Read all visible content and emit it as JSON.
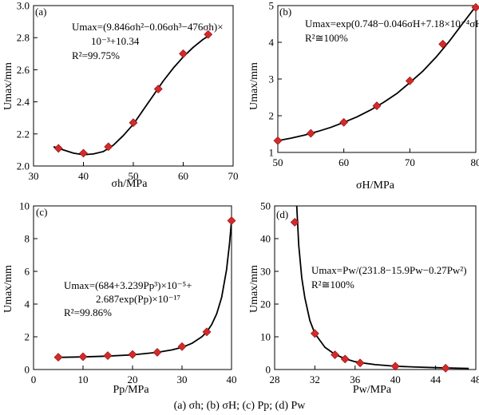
{
  "caption": "(a) σh; (b) σH; (c) Pp; (d) Pw",
  "chart_data": [
    {
      "panel": "(a)",
      "type": "scatter",
      "xlabel": "σh/MPa",
      "ylabel": "Umax/mm",
      "xlim": [
        30,
        70
      ],
      "ylim": [
        2.0,
        3.0
      ],
      "xticks": [
        30,
        40,
        50,
        60,
        70
      ],
      "yticks": [
        2.0,
        2.2,
        2.4,
        2.6,
        2.8,
        3.0
      ],
      "tick_labels_x": [
        "30",
        "40",
        "50",
        "60",
        "70"
      ],
      "tick_labels_y": [
        "2.0",
        "2.2",
        "2.4",
        "2.6",
        "2.8",
        "3.0"
      ],
      "x": [
        35,
        40,
        45,
        50,
        55,
        60,
        65
      ],
      "y": [
        2.11,
        2.08,
        2.12,
        2.27,
        2.48,
        2.7,
        2.82
      ],
      "fit_x": [
        34,
        36,
        38,
        40,
        42,
        44,
        46,
        48,
        50,
        52,
        54,
        56,
        58,
        60,
        62,
        64,
        65
      ],
      "fit_y": [
        2.12,
        2.1,
        2.08,
        2.07,
        2.075,
        2.09,
        2.13,
        2.19,
        2.26,
        2.35,
        2.44,
        2.53,
        2.61,
        2.68,
        2.74,
        2.79,
        2.81
      ],
      "equation": [
        "Umax=(9.846σh²−0.06σh³−476σh)×",
        "10⁻³+10.34",
        "R²=99.75%"
      ]
    },
    {
      "panel": "(b)",
      "type": "scatter",
      "xlabel": "σH/MPa",
      "ylabel": "Umax/mm",
      "xlim": [
        50,
        80
      ],
      "ylim": [
        1,
        5
      ],
      "xticks": [
        50,
        60,
        70,
        80
      ],
      "yticks": [
        1,
        2,
        3,
        4,
        5
      ],
      "tick_labels_x": [
        "50",
        "60",
        "70",
        "80"
      ],
      "tick_labels_y": [
        "1",
        "2",
        "3",
        "4",
        "5"
      ],
      "x": [
        50,
        55,
        60,
        65,
        70,
        75,
        80
      ],
      "y": [
        1.32,
        1.52,
        1.82,
        2.27,
        2.95,
        3.95,
        4.95
      ],
      "fit_x": [
        50,
        52,
        54,
        56,
        58,
        60,
        62,
        64,
        66,
        68,
        70,
        72,
        74,
        76,
        78,
        80
      ],
      "fit_y": [
        1.32,
        1.39,
        1.47,
        1.57,
        1.68,
        1.82,
        1.97,
        2.15,
        2.36,
        2.6,
        2.9,
        3.22,
        3.6,
        4.03,
        4.51,
        4.98
      ],
      "equation": [
        "Umax=exp(0.748−0.046σH+7.18×10⁻⁴σH²",
        "R²≅100%"
      ]
    },
    {
      "panel": "(c)",
      "type": "scatter",
      "xlabel": "Pp/MPa",
      "ylabel": "Umax/mm",
      "xlim": [
        0,
        40
      ],
      "ylim": [
        0,
        10
      ],
      "xticks": [
        0,
        10,
        20,
        30,
        40
      ],
      "yticks": [
        0,
        2,
        4,
        6,
        8,
        10
      ],
      "tick_labels_x": [
        "0",
        "10",
        "20",
        "30",
        "40"
      ],
      "tick_labels_y": [
        "0",
        "2",
        "4",
        "6",
        "8",
        "10"
      ],
      "x": [
        5,
        10,
        15,
        20,
        25,
        30,
        35,
        40
      ],
      "y": [
        0.75,
        0.78,
        0.85,
        0.92,
        1.05,
        1.4,
        2.3,
        9.1
      ],
      "fit_x": [
        5,
        10,
        15,
        20,
        25,
        28,
        30,
        32,
        34,
        35,
        36,
        37,
        38,
        39,
        39.6,
        40
      ],
      "fit_y": [
        0.74,
        0.77,
        0.82,
        0.9,
        1.05,
        1.2,
        1.35,
        1.6,
        2.0,
        2.3,
        2.75,
        3.4,
        4.4,
        6.1,
        7.7,
        9.1
      ],
      "equation": [
        "Umax=(684+3.239Pp³)×10⁻⁵+",
        "2.687exp(Pp)×10⁻¹⁷",
        "R²=99.86%"
      ]
    },
    {
      "panel": "(d)",
      "type": "scatter",
      "xlabel": "Pw/MPa",
      "ylabel": "Umax/mm",
      "xlim": [
        28,
        48
      ],
      "ylim": [
        0,
        50
      ],
      "xticks": [
        28,
        32,
        36,
        40,
        44,
        48
      ],
      "yticks": [
        0,
        10,
        20,
        30,
        40,
        50
      ],
      "tick_labels_x": [
        "28",
        "32",
        "36",
        "40",
        "44",
        "48"
      ],
      "tick_labels_y": [
        "0",
        "10",
        "20",
        "30",
        "40",
        "50"
      ],
      "x": [
        30,
        32,
        34,
        35,
        36.5,
        40,
        45
      ],
      "y": [
        45,
        11,
        4.5,
        3.2,
        2.0,
        1.0,
        0.4
      ],
      "fit_x": [
        30.2,
        30.4,
        30.7,
        31,
        31.5,
        32,
        33,
        34,
        35,
        36,
        37,
        38,
        40,
        42,
        44,
        46,
        47.3
      ],
      "fit_y": [
        50,
        38,
        28,
        22,
        15,
        11,
        6.8,
        4.6,
        3.3,
        2.4,
        1.9,
        1.5,
        1.0,
        0.75,
        0.55,
        0.42,
        0.35
      ],
      "equation": [
        "Umax=Pw/(231.8−15.9Pw−0.27Pw²)",
        "R²≅100%"
      ]
    }
  ]
}
